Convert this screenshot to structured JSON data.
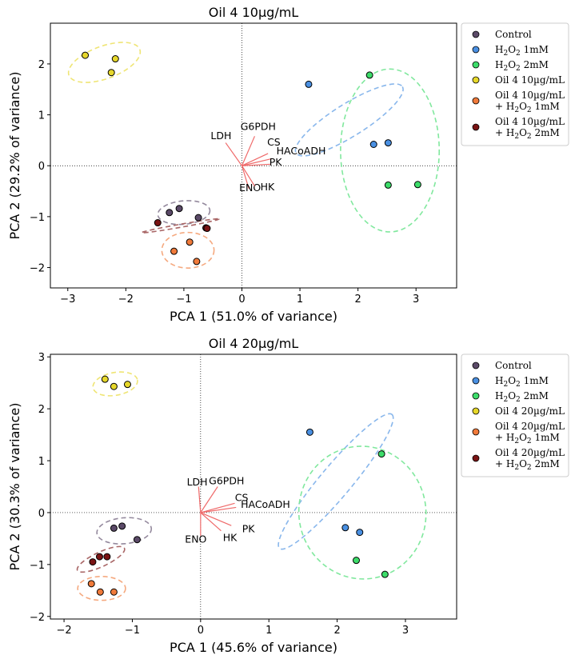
{
  "chart_data": [
    {
      "type": "scatter",
      "title": "Oil 4 10µg/mL",
      "xlabel": "PCA 1 (51.0% of variance)",
      "ylabel": "PCA 2 (29.2% of variance)",
      "xlim": [
        -3.3,
        3.7
      ],
      "ylim": [
        -2.4,
        2.8
      ],
      "xticks": [
        -3,
        -2,
        -1,
        0,
        1,
        2,
        3
      ],
      "yticks": [
        -2,
        -1,
        0,
        1,
        2
      ],
      "xtick_labels": [
        "−3",
        "−2",
        "−1",
        "0",
        "1",
        "2",
        "3"
      ],
      "ytick_labels": [
        "−2",
        "−1",
        "0",
        "1",
        "2"
      ],
      "legend_position": "outside-right",
      "series": [
        {
          "name": "Control",
          "color": "#5b4a68",
          "points": [
            [
              -1.25,
              -0.92
            ],
            [
              -1.08,
              -0.84
            ],
            [
              -0.75,
              -1.02
            ]
          ],
          "ellipse": {
            "cx": -1.0,
            "cy": -0.92,
            "rx": 0.45,
            "ry": 0.23,
            "angle": -5
          }
        },
        {
          "name": "H₂O₂ 1mM",
          "color": "#4a90e2",
          "points": [
            [
              1.15,
              1.6
            ],
            [
              2.27,
              0.42
            ],
            [
              2.52,
              0.45
            ]
          ],
          "ellipse": {
            "cx": 1.85,
            "cy": 0.9,
            "rx": 1.08,
            "ry": 0.32,
            "angle": -32
          }
        },
        {
          "name": "H₂O₂ 2mM",
          "color": "#3ddc6a",
          "points": [
            [
              2.2,
              1.78
            ],
            [
              2.52,
              -0.38
            ],
            [
              3.03,
              -0.37
            ]
          ],
          "ellipse": {
            "cx": 2.55,
            "cy": 0.3,
            "rx": 0.85,
            "ry": 1.6,
            "angle": 0
          }
        },
        {
          "name": "Oil 4 10µg/mL",
          "color": "#e6d72a",
          "points": [
            [
              -2.7,
              2.17
            ],
            [
              -2.18,
              2.1
            ],
            [
              -2.25,
              1.83
            ]
          ],
          "ellipse": {
            "cx": -2.37,
            "cy": 2.03,
            "rx": 0.65,
            "ry": 0.32,
            "angle": -20
          }
        },
        {
          "name": "Oil 4 10µg/mL\n+ H₂O₂ 1mM",
          "color": "#f07a3a",
          "points": [
            [
              -1.17,
              -1.68
            ],
            [
              -0.9,
              -1.5
            ],
            [
              -0.78,
              -1.88
            ]
          ],
          "ellipse": {
            "cx": -0.93,
            "cy": -1.66,
            "rx": 0.45,
            "ry": 0.35,
            "angle": 0
          }
        },
        {
          "name": "Oil 4 10µg/mL\n+ H₂O₂ 2mM",
          "color": "#7a1414",
          "points": [
            [
              -1.45,
              -1.12
            ],
            [
              -0.62,
              -1.22
            ],
            [
              -0.6,
              -1.23
            ]
          ],
          "ellipse": {
            "cx": -1.06,
            "cy": -1.18,
            "rx": 0.68,
            "ry": 0.03,
            "angle": -10
          }
        }
      ],
      "loadings": [
        {
          "label": "LDH",
          "x": -0.28,
          "y": 0.45,
          "lx": -0.36,
          "ly": 0.52
        },
        {
          "label": "G6PDH",
          "x": 0.22,
          "y": 0.58,
          "lx": 0.28,
          "ly": 0.7
        },
        {
          "label": "CS",
          "x": 0.45,
          "y": 0.24,
          "lx": 0.55,
          "ly": 0.4
        },
        {
          "label": "HACoADH",
          "x": 0.52,
          "y": 0.14,
          "lx": 1.02,
          "ly": 0.22
        },
        {
          "label": "PK",
          "x": 0.5,
          "y": 0.03,
          "lx": 0.58,
          "ly": 0.0
        },
        {
          "label": "ENO",
          "x": 0.12,
          "y": -0.45,
          "lx": 0.14,
          "ly": -0.5
        },
        {
          "label": "HK",
          "x": 0.22,
          "y": -0.4,
          "lx": 0.44,
          "ly": -0.48
        }
      ]
    },
    {
      "type": "scatter",
      "title": "Oil 4 20µg/mL",
      "xlabel": "PCA 1 (45.6% of variance)",
      "ylabel": "PCA 2 (30.3% of variance)",
      "xlim": [
        -2.2,
        3.75
      ],
      "ylim": [
        -2.05,
        3.05
      ],
      "xticks": [
        -2,
        -1,
        0,
        1,
        2,
        3
      ],
      "yticks": [
        -2,
        -1,
        0,
        1,
        2,
        3
      ],
      "xtick_labels": [
        "−2",
        "−1",
        "0",
        "1",
        "2",
        "3"
      ],
      "ytick_labels": [
        "−2",
        "−1",
        "0",
        "1",
        "2",
        "3"
      ],
      "legend_position": "outside-right",
      "series": [
        {
          "name": "Control",
          "color": "#5b4a68",
          "points": [
            [
              -1.27,
              -0.3
            ],
            [
              -1.15,
              -0.26
            ],
            [
              -0.93,
              -0.52
            ]
          ],
          "ellipse": {
            "cx": -1.12,
            "cy": -0.35,
            "rx": 0.4,
            "ry": 0.25,
            "angle": -5
          }
        },
        {
          "name": "H₂O₂ 1mM",
          "color": "#4a90e2",
          "points": [
            [
              1.6,
              1.55
            ],
            [
              2.12,
              -0.29
            ],
            [
              2.33,
              -0.38
            ]
          ],
          "ellipse": {
            "cx": 1.98,
            "cy": 0.6,
            "rx": 1.28,
            "ry": 0.3,
            "angle": -50
          }
        },
        {
          "name": "H₂O₂ 2mM",
          "color": "#3ddc6a",
          "points": [
            [
              2.65,
              1.13
            ],
            [
              2.28,
              -0.92
            ],
            [
              2.7,
              -1.19
            ]
          ],
          "ellipse": {
            "cx": 2.37,
            "cy": 0.0,
            "rx": 0.93,
            "ry": 1.28,
            "angle": -10
          }
        },
        {
          "name": "Oil 4 20µg/mL",
          "color": "#e6d72a",
          "points": [
            [
              -1.4,
              2.57
            ],
            [
              -1.27,
              2.43
            ],
            [
              -1.07,
              2.47
            ]
          ],
          "ellipse": {
            "cx": -1.25,
            "cy": 2.48,
            "rx": 0.33,
            "ry": 0.22,
            "angle": -10
          }
        },
        {
          "name": "Oil 4 20µg/mL\n+ H₂O₂ 1mM",
          "color": "#f07a3a",
          "points": [
            [
              -1.6,
              -1.37
            ],
            [
              -1.47,
              -1.53
            ],
            [
              -1.27,
              -1.53
            ]
          ],
          "ellipse": {
            "cx": -1.45,
            "cy": -1.46,
            "rx": 0.35,
            "ry": 0.23,
            "angle": 0
          }
        },
        {
          "name": "Oil 4 20µg/mL\n+ H₂O₂ 2mM",
          "color": "#7a1414",
          "points": [
            [
              -1.58,
              -0.95
            ],
            [
              -1.48,
              -0.85
            ],
            [
              -1.37,
              -0.85
            ]
          ],
          "ellipse": {
            "cx": -1.46,
            "cy": -0.9,
            "rx": 0.38,
            "ry": 0.14,
            "angle": -25
          }
        }
      ],
      "loadings": [
        {
          "label": "LDH",
          "x": -0.03,
          "y": 0.5,
          "lx": -0.05,
          "ly": 0.52
        },
        {
          "label": "G6PDH",
          "x": 0.25,
          "y": 0.5,
          "lx": 0.38,
          "ly": 0.55
        },
        {
          "label": "CS",
          "x": 0.5,
          "y": 0.18,
          "lx": 0.6,
          "ly": 0.22
        },
        {
          "label": "HACoADH",
          "x": 0.52,
          "y": 0.1,
          "lx": 0.95,
          "ly": 0.09
        },
        {
          "label": "PK",
          "x": 0.45,
          "y": -0.25,
          "lx": 0.7,
          "ly": -0.38
        },
        {
          "label": "ENO",
          "x": 0.0,
          "y": -0.45,
          "lx": -0.07,
          "ly": -0.58
        },
        {
          "label": "HK",
          "x": 0.3,
          "y": -0.35,
          "lx": 0.43,
          "ly": -0.55
        }
      ]
    }
  ]
}
